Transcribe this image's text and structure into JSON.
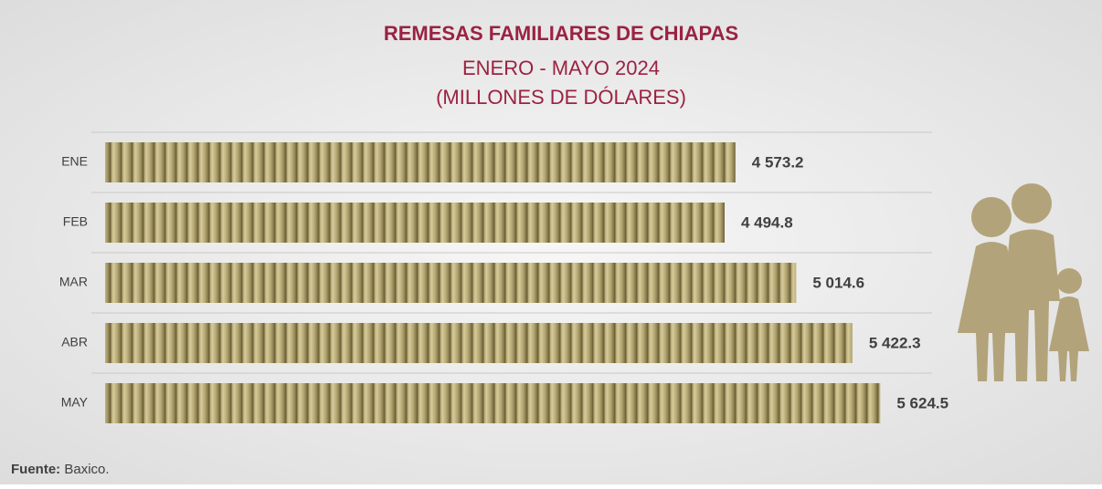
{
  "chart_data": {
    "type": "bar",
    "orientation": "horizontal",
    "title": "REMESAS FAMILIARES DE CHIAPAS",
    "subtitle": [
      "ENERO - MAYO 2024",
      "(MILLONES DE DÓLARES)"
    ],
    "categories": [
      "ENE",
      "FEB",
      "MAR",
      "ABR",
      "MAY"
    ],
    "values": [
      4573.2,
      4494.8,
      5014.6,
      5422.3,
      5624.5
    ],
    "value_labels": [
      "4 573.2",
      "4 494.8",
      "5 014.6",
      "5 422.3",
      "5 624.5"
    ],
    "color": "#b3a673",
    "xlim": [
      0,
      6000
    ]
  },
  "source": {
    "label": "Fuente:",
    "text": "Baxico."
  }
}
